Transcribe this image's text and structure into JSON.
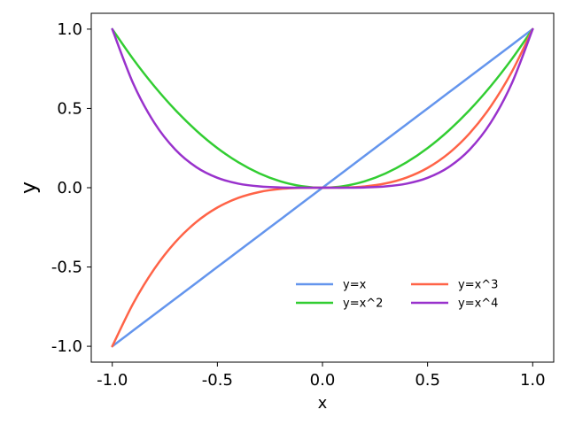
{
  "chart_data": {
    "type": "line",
    "title": "",
    "xlabel": "x",
    "ylabel": "y",
    "xlim": [
      -1.1,
      1.1
    ],
    "ylim": [
      -1.1,
      1.1
    ],
    "xticks": [
      -1.0,
      -0.5,
      0.0,
      0.5,
      1.0
    ],
    "yticks": [
      -1.0,
      -0.5,
      0.0,
      0.5,
      1.0
    ],
    "xtick_labels": [
      "-1.0",
      "-0.5",
      "0.0",
      "0.5",
      "1.0"
    ],
    "ytick_labels": [
      "-1.0",
      "-0.5",
      "0.0",
      "0.5",
      "1.0"
    ],
    "grid": false,
    "legend_position": "lower-right",
    "legend_columns": 2,
    "x": [
      -1.0,
      -0.9,
      -0.8,
      -0.7,
      -0.6,
      -0.5,
      -0.4,
      -0.3,
      -0.2,
      -0.1,
      0.0,
      0.1,
      0.2,
      0.3,
      0.4,
      0.5,
      0.6,
      0.7,
      0.8,
      0.9,
      1.0
    ],
    "series": [
      {
        "name": "y=x",
        "color": "#6495ED",
        "values": [
          -1.0,
          -0.9,
          -0.8,
          -0.7,
          -0.6,
          -0.5,
          -0.4,
          -0.3,
          -0.2,
          -0.1,
          0.0,
          0.1,
          0.2,
          0.3,
          0.4,
          0.5,
          0.6,
          0.7,
          0.8,
          0.9,
          1.0
        ]
      },
      {
        "name": "y=x^2",
        "color": "#32CD32",
        "values": [
          1.0,
          0.81,
          0.64,
          0.49,
          0.36,
          0.25,
          0.16,
          0.09,
          0.04,
          0.01,
          0.0,
          0.01,
          0.04,
          0.09,
          0.16,
          0.25,
          0.36,
          0.49,
          0.64,
          0.81,
          1.0
        ]
      },
      {
        "name": "y=x^3",
        "color": "#FF6347",
        "values": [
          -1.0,
          -0.729,
          -0.512,
          -0.343,
          -0.216,
          -0.125,
          -0.064,
          -0.027,
          -0.008,
          -0.001,
          0.0,
          0.001,
          0.008,
          0.027,
          0.064,
          0.125,
          0.216,
          0.343,
          0.512,
          0.729,
          1.0
        ]
      },
      {
        "name": "y=x^4",
        "color": "#9932CC",
        "values": [
          1.0,
          0.6561,
          0.4096,
          0.2401,
          0.1296,
          0.0625,
          0.0256,
          0.0081,
          0.0016,
          0.0001,
          0.0,
          0.0001,
          0.0016,
          0.0081,
          0.0256,
          0.0625,
          0.1296,
          0.2401,
          0.4096,
          0.6561,
          1.0
        ]
      }
    ]
  }
}
